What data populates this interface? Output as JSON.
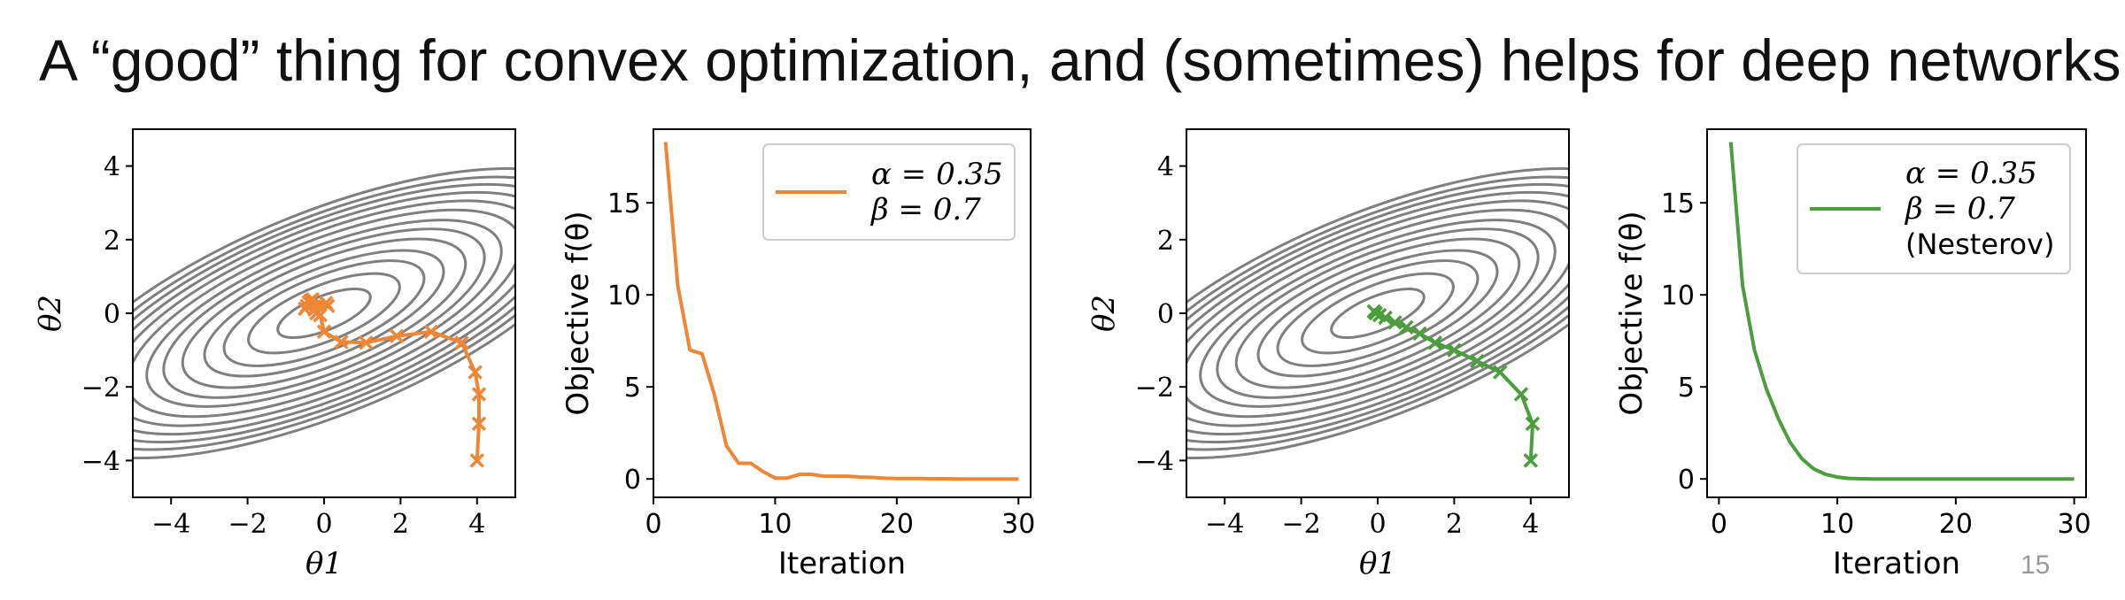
{
  "slide": {
    "title": "A “good” thing for convex optimization, and (sometimes) helps for deep networks",
    "page_number": "15"
  },
  "colors": {
    "momentum": "#ef8636",
    "nesterov": "#4c9d3e",
    "contour": "#7f7f7f"
  },
  "chart_data": [
    {
      "type": "line",
      "subtype": "contour-trajectory",
      "xlabel": "θ1",
      "ylabel": "θ2",
      "xlim": [
        -5,
        5
      ],
      "ylim": [
        -5,
        5
      ],
      "xticks": [
        -4,
        -2,
        0,
        2,
        4
      ],
      "yticks": [
        -4,
        -2,
        0,
        2,
        4
      ],
      "xtick_labels": [
        "−4",
        "−2",
        "0",
        "2",
        "4"
      ],
      "ytick_labels": [
        "−4",
        "−2",
        "0",
        "2",
        "4"
      ],
      "contours": {
        "levels": [
          1.5,
          4,
          7,
          10,
          14,
          18,
          22,
          27,
          32,
          37,
          42,
          47,
          53
        ],
        "angle_deg": -22,
        "axis_ratio": 2.9
      },
      "series": [
        {
          "color": "momentum",
          "marker": "x",
          "x": [
            4.0,
            4.05,
            4.05,
            3.95,
            3.6,
            2.8,
            1.9,
            1.1,
            0.45,
            0.0,
            -0.1,
            -0.25,
            0.1,
            -0.3,
            -0.45,
            -0.2,
            0.05,
            -0.35,
            -0.5,
            -0.15,
            -0.4
          ],
          "y": [
            -4.0,
            -3.0,
            -2.2,
            -1.6,
            -0.8,
            -0.5,
            -0.62,
            -0.8,
            -0.78,
            -0.5,
            -0.05,
            0.1,
            0.2,
            0.38,
            0.2,
            0.0,
            0.28,
            0.35,
            0.12,
            0.22,
            0.3
          ]
        }
      ],
      "grid": false
    },
    {
      "type": "line",
      "xlabel": "Iteration",
      "ylabel": "Objective f(θ)",
      "xlim": [
        0,
        31
      ],
      "ylim": [
        -1,
        19
      ],
      "xticks": [
        0,
        10,
        20,
        30
      ],
      "yticks": [
        0,
        5,
        10,
        15
      ],
      "xtick_labels": [
        "0",
        "10",
        "20",
        "30"
      ],
      "ytick_labels": [
        "0",
        "5",
        "10",
        "15"
      ],
      "legend": {
        "placement": "top-right",
        "lines": [
          "α = 0.35",
          "β = 0.7"
        ]
      },
      "series": [
        {
          "color": "momentum",
          "x": [
            1,
            2,
            3,
            4,
            5,
            6,
            7,
            8,
            9,
            10,
            11,
            12,
            13,
            14,
            15,
            16,
            17,
            18,
            19,
            20,
            21,
            22,
            23,
            24,
            25,
            26,
            27,
            28,
            29,
            30
          ],
          "y": [
            18.3,
            10.5,
            7.0,
            6.8,
            4.6,
            1.8,
            0.85,
            0.85,
            0.4,
            0.05,
            0.05,
            0.25,
            0.25,
            0.15,
            0.15,
            0.15,
            0.1,
            0.08,
            0.04,
            0.02,
            0.02,
            0.02,
            0.01,
            0.01,
            0.0,
            0.0,
            0.0,
            0.0,
            0.0,
            0.0
          ]
        }
      ],
      "grid": false
    },
    {
      "type": "line",
      "subtype": "contour-trajectory",
      "xlabel": "θ1",
      "ylabel": "θ2",
      "xlim": [
        -5,
        5
      ],
      "ylim": [
        -5,
        5
      ],
      "xticks": [
        -4,
        -2,
        0,
        2,
        4
      ],
      "yticks": [
        -4,
        -2,
        0,
        2,
        4
      ],
      "xtick_labels": [
        "−4",
        "−2",
        "0",
        "2",
        "4"
      ],
      "ytick_labels": [
        "−4",
        "−2",
        "0",
        "2",
        "4"
      ],
      "contours": {
        "levels": [
          1.5,
          4,
          7,
          10,
          14,
          18,
          22,
          27,
          32,
          37,
          42,
          47,
          53
        ],
        "angle_deg": -22,
        "axis_ratio": 2.9
      },
      "series": [
        {
          "color": "nesterov",
          "marker": "x",
          "x": [
            4.0,
            4.05,
            3.75,
            3.2,
            2.6,
            2.0,
            1.5,
            1.1,
            0.75,
            0.45,
            0.2,
            0.05,
            -0.05,
            -0.1
          ],
          "y": [
            -4.0,
            -3.0,
            -2.2,
            -1.6,
            -1.3,
            -1.0,
            -0.8,
            -0.55,
            -0.38,
            -0.25,
            -0.12,
            -0.05,
            0.0,
            0.05
          ]
        }
      ],
      "grid": false
    },
    {
      "type": "line",
      "xlabel": "Iteration",
      "ylabel": "Objective f(θ)",
      "xlim": [
        -1,
        31
      ],
      "ylim": [
        -1,
        19
      ],
      "xticks": [
        0,
        10,
        20,
        30
      ],
      "yticks": [
        0,
        5,
        10,
        15
      ],
      "xtick_labels": [
        "0",
        "10",
        "20",
        "30"
      ],
      "ytick_labels": [
        "0",
        "5",
        "10",
        "15"
      ],
      "legend": {
        "placement": "top-right",
        "lines": [
          "α = 0.35",
          "β = 0.7",
          "(Nesterov)"
        ]
      },
      "series": [
        {
          "color": "nesterov",
          "x": [
            1,
            2,
            3,
            4,
            5,
            6,
            7,
            8,
            9,
            10,
            11,
            12,
            13,
            14,
            15,
            16,
            17,
            18,
            19,
            20,
            21,
            22,
            23,
            24,
            25,
            26,
            27,
            28,
            29,
            30
          ],
          "y": [
            18.3,
            10.5,
            7.0,
            4.9,
            3.3,
            2.0,
            1.1,
            0.55,
            0.25,
            0.1,
            0.03,
            0.01,
            0.0,
            0.0,
            0.0,
            0.0,
            0.0,
            0.0,
            0.0,
            0.0,
            0.0,
            0.0,
            0.0,
            0.0,
            0.0,
            0.0,
            0.0,
            0.0,
            0.0,
            0.0
          ]
        }
      ],
      "grid": false
    }
  ]
}
